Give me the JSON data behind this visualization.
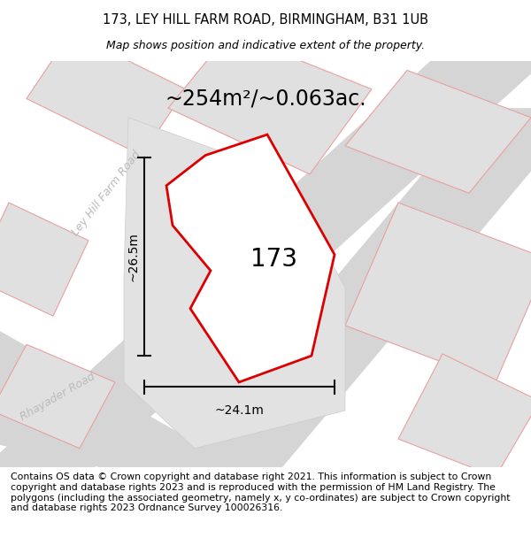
{
  "title_line1": "173, LEY HILL FARM ROAD, BIRMINGHAM, B31 1UB",
  "title_line2": "Map shows position and indicative extent of the property.",
  "footer_text": "Contains OS data © Crown copyright and database right 2021. This information is subject to Crown copyright and database rights 2023 and is reproduced with the permission of HM Land Registry. The polygons (including the associated geometry, namely x, y co-ordinates) are subject to Crown copyright and database rights 2023 Ordnance Survey 100026316.",
  "area_label": "~254m²/~0.063ac.",
  "number_label": "173",
  "dim_horiz": "~24.1m",
  "dim_vert": "~26.5m",
  "road_label_1": "Ley Hill Farm Road",
  "road_label_2": "Rhayader Road",
  "bg_color": "#ffffff",
  "plot_outline_color": "#dd0000",
  "plot_fill": "#e8e8e8",
  "road_band_color": "#d8d8d8",
  "neighbor_fill": "#e4e4e4",
  "neighbor_outline": "#e8a0a0",
  "dim_line_color": "#111111",
  "title_fontsize": 10.5,
  "subtitle_fontsize": 9,
  "footer_fontsize": 7.8,
  "area_fontsize": 17,
  "number_fontsize": 20,
  "dim_fontsize": 10,
  "road_label_fontsize": 9,
  "road_label_color": "#bbbbbb"
}
